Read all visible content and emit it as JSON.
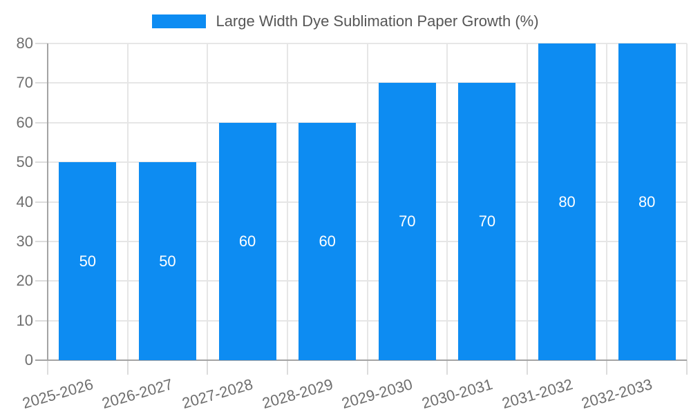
{
  "legend": {
    "label": "Large Width Dye Sublimation Paper Growth (%)"
  },
  "chart_data": {
    "type": "bar",
    "title": "Large Width Dye Sublimation Paper Growth (%)",
    "categories": [
      "2025-2026",
      "2026-2027",
      "2027-2028",
      "2028-2029",
      "2029-2030",
      "2030-2031",
      "2031-2032",
      "2032-2033"
    ],
    "series": [
      {
        "name": "Large Width Dye Sublimation Paper Growth (%)",
        "values": [
          50,
          50,
          60,
          60,
          70,
          70,
          80,
          80
        ]
      }
    ],
    "bar_labels": [
      "50",
      "50",
      "60",
      "60",
      "70",
      "70",
      "80",
      "80"
    ],
    "xlabel": "",
    "ylabel": "",
    "ylim": [
      0,
      80
    ],
    "ytick_step": 10,
    "yticks": [
      0,
      10,
      20,
      30,
      40,
      50,
      60,
      70,
      80
    ],
    "grid": true,
    "legend_position": "top",
    "colors": {
      "bar": "#0d8cf2",
      "bar_label": "#ffffff",
      "gridline": "#e6e6e6",
      "tick_stub": "#dcdcdc",
      "axis_line": "#a3a3a3",
      "tick_text": "#6f6f6f",
      "legend_text": "#565656"
    }
  }
}
